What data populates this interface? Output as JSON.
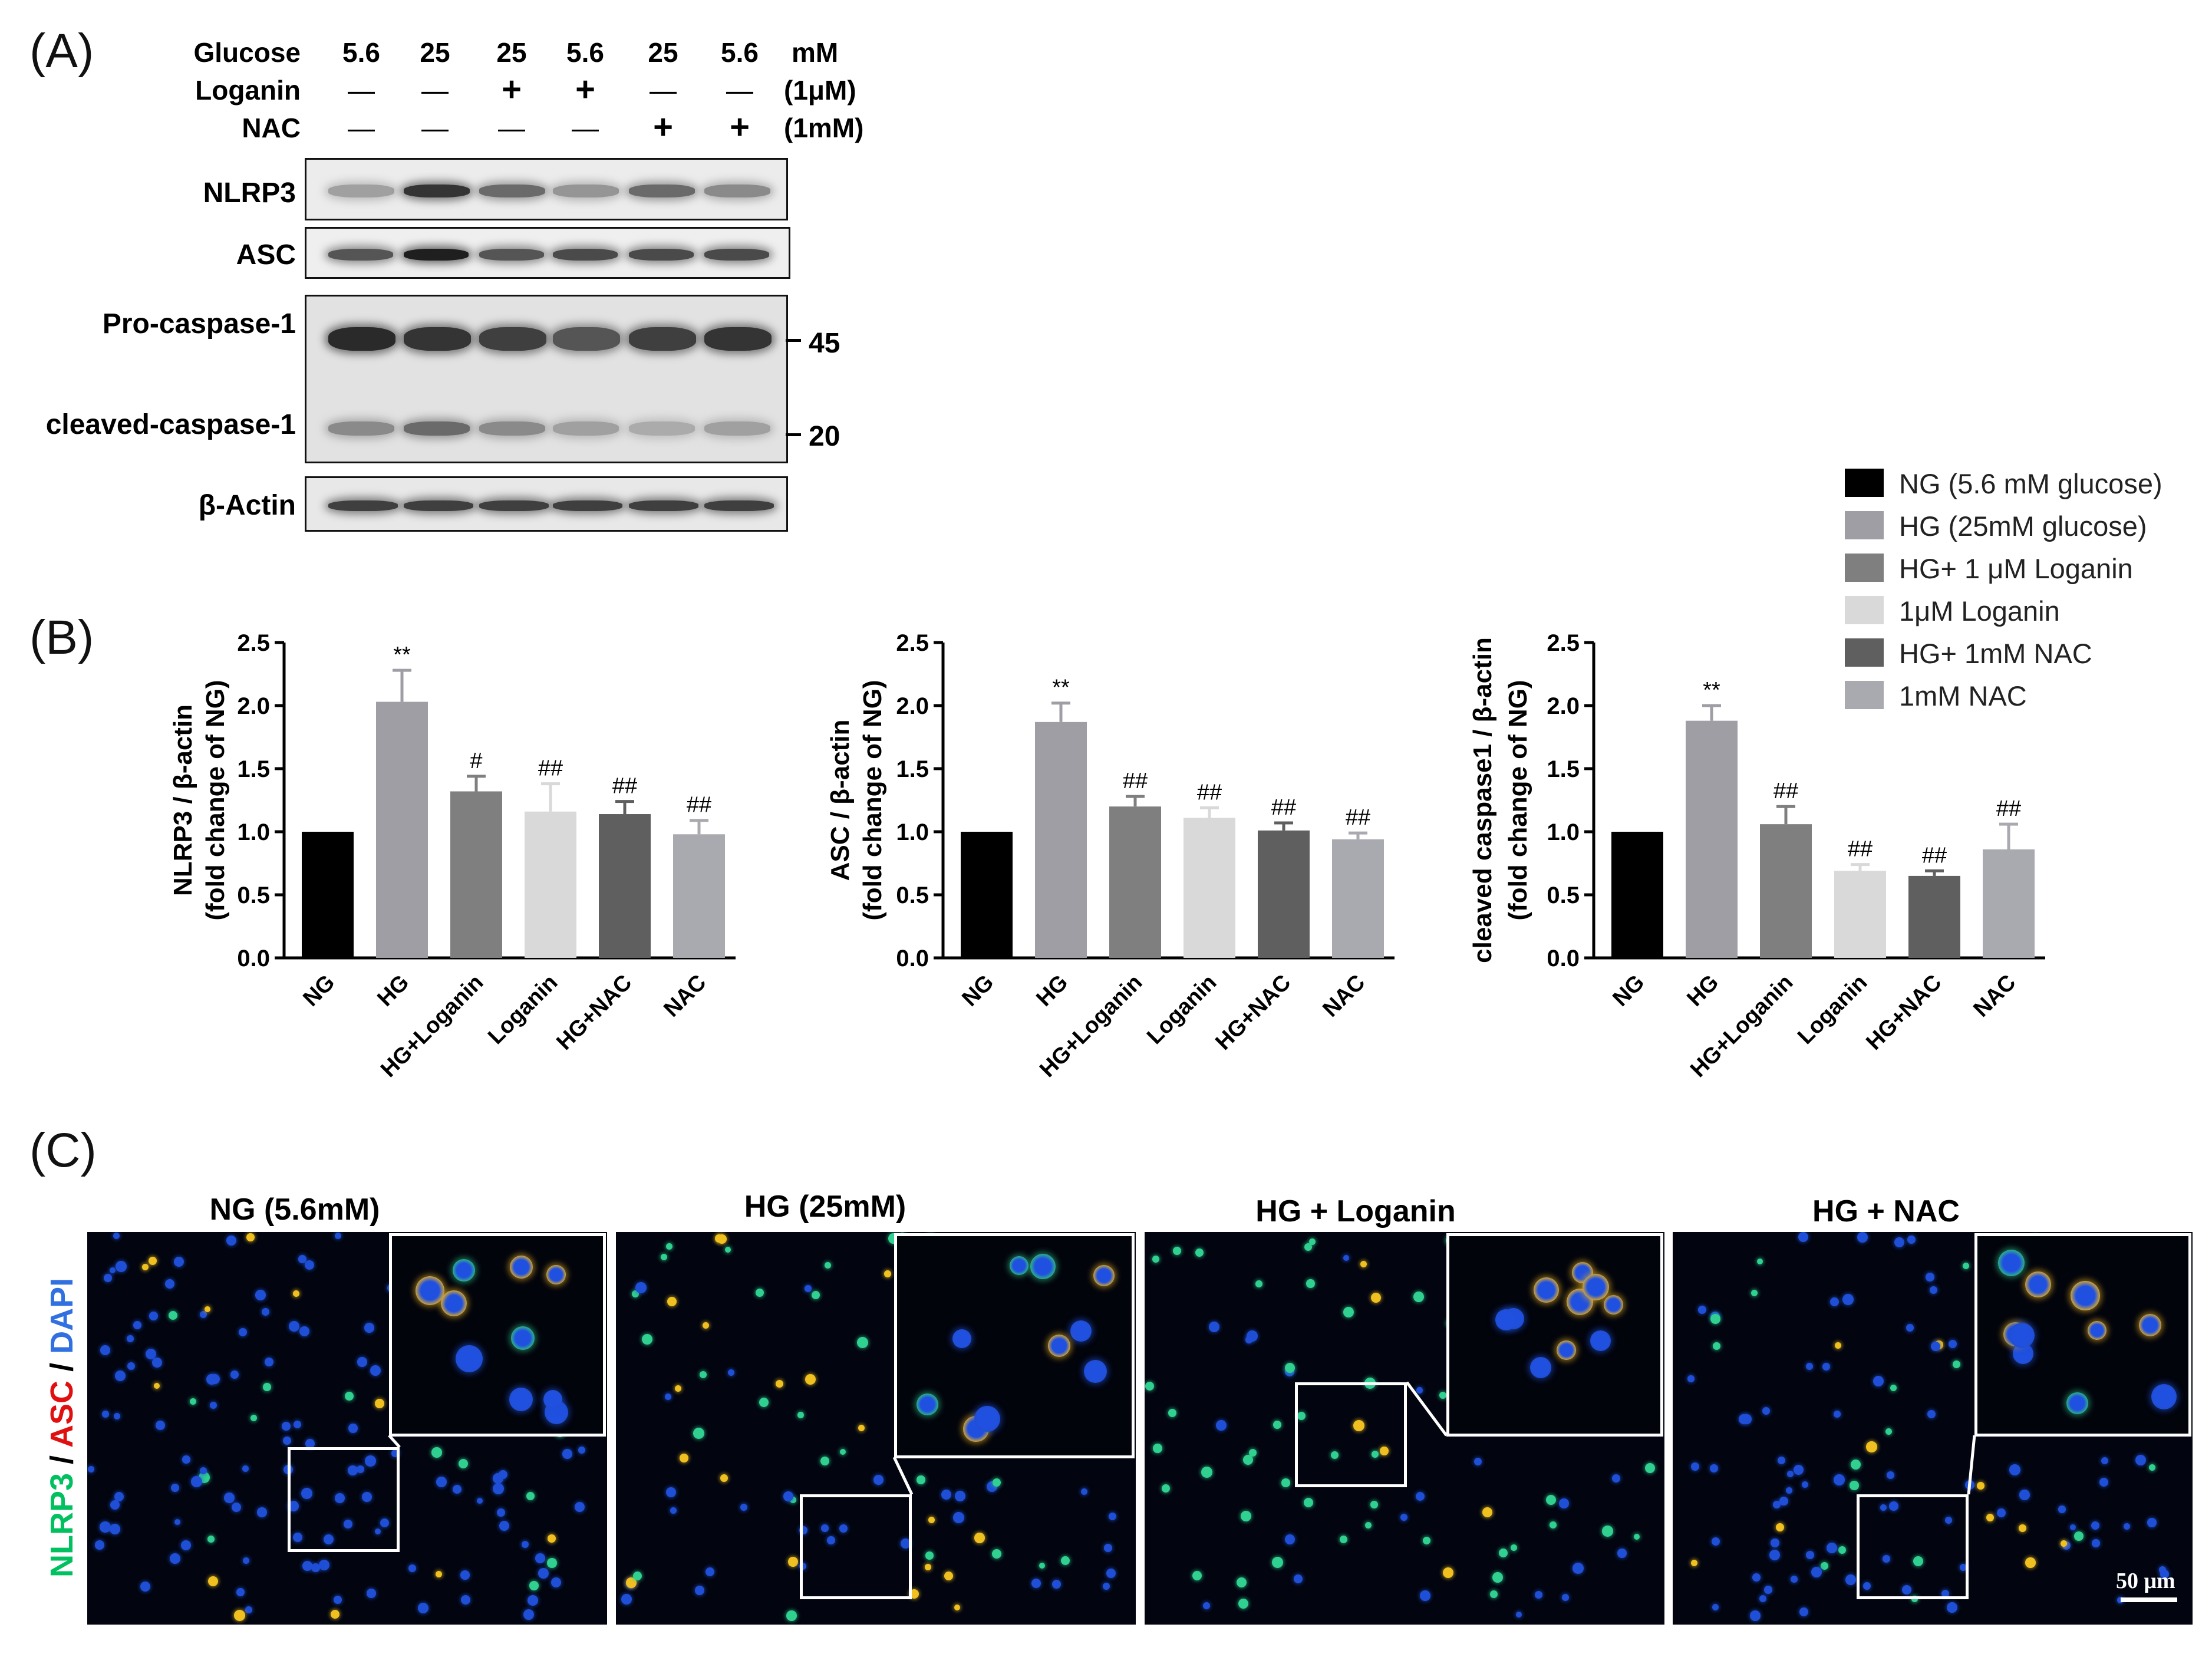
{
  "panels": {
    "a": "(A)",
    "b": "(B)",
    "c": "(C)"
  },
  "western_blot": {
    "rows": [
      {
        "name": "Glucose",
        "values": [
          "5.6",
          "25",
          "25",
          "5.6",
          "25",
          "5.6"
        ],
        "unit": "mM"
      },
      {
        "name": "Loganin",
        "values": [
          "—",
          "—",
          "+",
          "+",
          "—",
          "—"
        ],
        "unit": "(1μM)"
      },
      {
        "name": "NAC",
        "values": [
          "—",
          "—",
          "—",
          "—",
          "+",
          "+"
        ],
        "unit": "(1mM)"
      }
    ],
    "blots": [
      "NLRP3",
      "ASC",
      "Pro-caspase-1",
      "cleaved-caspase-1",
      "β-Actin"
    ],
    "markers": [
      "45",
      "20"
    ],
    "band_intensity": {
      "NLRP3": [
        0.35,
        0.85,
        0.6,
        0.4,
        0.6,
        0.45
      ],
      "ASC": [
        0.7,
        0.95,
        0.7,
        0.75,
        0.75,
        0.75
      ],
      "Pro-caspase-1": [
        0.9,
        0.85,
        0.8,
        0.7,
        0.8,
        0.85
      ],
      "cleaved-caspase-1": [
        0.45,
        0.6,
        0.45,
        0.35,
        0.3,
        0.35
      ],
      "β-Actin": [
        0.8,
        0.8,
        0.8,
        0.8,
        0.8,
        0.8
      ]
    }
  },
  "legend": [
    {
      "label": "NG (5.6 mM glucose)",
      "color": "#000000"
    },
    {
      "label": "HG (25mM glucose)",
      "color": "#9e9ea4"
    },
    {
      "label": "HG+ 1 μM Loganin",
      "color": "#7f7f7f"
    },
    {
      "label": "1μM Loganin",
      "color": "#d9d9d9"
    },
    {
      "label": "HG+ 1mM NAC",
      "color": "#5f5f5f"
    },
    {
      "label": "1mM NAC",
      "color": "#a9a9b0"
    }
  ],
  "chart_data": [
    {
      "type": "bar",
      "categories": [
        "NG",
        "HG",
        "HG+Loganin",
        "Loganin",
        "HG+NAC",
        "NAC"
      ],
      "values": [
        1.0,
        2.03,
        1.32,
        1.16,
        1.14,
        0.98
      ],
      "errors": [
        0,
        0.25,
        0.12,
        0.22,
        0.1,
        0.11
      ],
      "annotations": [
        "",
        "**",
        "#",
        "##",
        "##",
        "##"
      ],
      "ylabel_line1": "NLRP3 / β-actin",
      "ylabel_line2": "(fold change of NG)",
      "ylim": [
        0,
        2.5
      ],
      "yticks": [
        "0.0",
        "0.5",
        "1.0",
        "1.5",
        "2.0",
        "2.5"
      ]
    },
    {
      "type": "bar",
      "categories": [
        "NG",
        "HG",
        "HG+Loganin",
        "Loganin",
        "HG+NAC",
        "NAC"
      ],
      "values": [
        1.0,
        1.87,
        1.2,
        1.11,
        1.01,
        0.94
      ],
      "errors": [
        0,
        0.15,
        0.08,
        0.08,
        0.06,
        0.05
      ],
      "annotations": [
        "",
        "**",
        "##",
        "##",
        "##",
        "##"
      ],
      "ylabel_line1": "ASC / β-actin",
      "ylabel_line2": "(fold change of NG)",
      "ylim": [
        0,
        2.5
      ],
      "yticks": [
        "0.0",
        "0.5",
        "1.0",
        "1.5",
        "2.0",
        "2.5"
      ]
    },
    {
      "type": "bar",
      "categories": [
        "NG",
        "HG",
        "HG+Loganin",
        "Loganin",
        "HG+NAC",
        "NAC"
      ],
      "values": [
        1.0,
        1.88,
        1.06,
        0.69,
        0.65,
        0.86
      ],
      "errors": [
        0,
        0.12,
        0.14,
        0.05,
        0.04,
        0.2
      ],
      "annotations": [
        "",
        "**",
        "##",
        "##",
        "##",
        "##"
      ],
      "ylabel_line1": "cleaved caspase1 / β-actin",
      "ylabel_line2": "(fold change of NG)",
      "ylim": [
        0,
        2.5
      ],
      "yticks": [
        "0.0",
        "0.5",
        "1.0",
        "1.5",
        "2.0",
        "2.5"
      ]
    }
  ],
  "fluorescence": {
    "titles": [
      "NG (5.6mM)",
      "HG (25mM)",
      "HG + Loganin",
      "HG + NAC"
    ],
    "stain_label": [
      {
        "text": "NLRP3",
        "color": "#00c060"
      },
      {
        "text": " / ",
        "color": "#000000"
      },
      {
        "text": "ASC",
        "color": "#e01010"
      },
      {
        "text": " / ",
        "color": "#000000"
      },
      {
        "text": "DAPI",
        "color": "#3070e0"
      }
    ],
    "scale_bar": "50 μm"
  }
}
